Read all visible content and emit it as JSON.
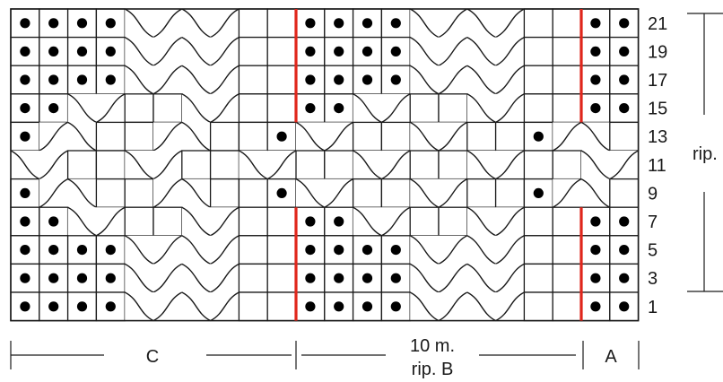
{
  "chart": {
    "columns": 22,
    "rows": 11,
    "rows_fig": [
      "kkkkccccppkkkkccccppkk",
      "kkkkccccppkkkkccccppkk",
      "kkkkccccppkkkkccccppkk",
      "kkccppccppkkccppccppkk",
      "kccppccppkccppccppkccp",
      "ccppccppccppccppccppcc",
      "kccppccppkccppccppkccp",
      "kkccppccppkkccppccppkk",
      "kkkkccccppkkkkccccppkk",
      "kkkkccccppkkkkccccppkk",
      "kkkkccccppkkkkccccppkk"
    ]
  },
  "row_numbers": [
    "21",
    "19",
    "17",
    "15",
    "13",
    "11",
    "9",
    "7",
    "5",
    "3",
    "1"
  ],
  "repeat_label": "rip.",
  "bottom_labels": {
    "c": "C",
    "b_count": "10 m.",
    "b_name": "rip. B",
    "a": "A"
  },
  "colors": {
    "grid": "#1a1a1a",
    "purl_dot": "#000000",
    "cable_line": "#1a1a1a",
    "repeat_marker": "#e0261b"
  }
}
